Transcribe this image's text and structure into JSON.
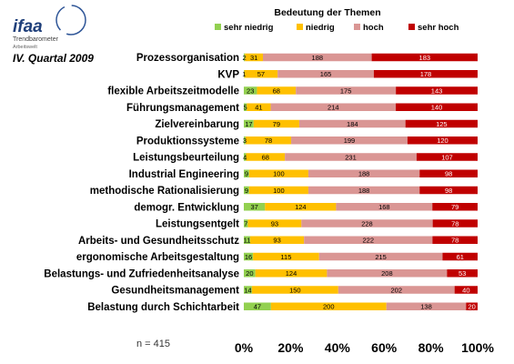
{
  "logo": {
    "word": "ifaa",
    "line1": "Trendbarometer",
    "line2": "Arbeitswelt"
  },
  "period": "IV. Quartal 2009",
  "sample": "n = 415",
  "colors": {
    "sehr_niedrig": "#92d050",
    "niedrig": "#ffc000",
    "hoch": "#da9694",
    "sehr_hoch": "#c00000"
  },
  "chart_data": {
    "type": "bar",
    "orientation": "horizontal",
    "stacked": "percent",
    "title": "Bedeutung der Themen",
    "legend_position": "top",
    "xlim": [
      0,
      100
    ],
    "x_ticks": [
      "0%",
      "20%",
      "40%",
      "60%",
      "80%",
      "100%"
    ],
    "categories": [
      "Prozessorganisation",
      "KVP",
      "flexible Arbeitszeitmodelle",
      "Führungsmanagement",
      "Zielvereinbarung",
      "Produktionssysteme",
      "Leistungsbeurteilung",
      "Industrial Engineering",
      "methodische Rationalisierung",
      "demogr. Entwicklung",
      "Leistungsentgelt",
      "Arbeits- und Gesundheitsschutz",
      "ergonomische Arbeitsgestaltung",
      "Belastungs- und Zufriedenheitsanalyse",
      "Gesundheitsmanagement",
      "Belastung durch Schichtarbeit"
    ],
    "series": [
      {
        "name": "sehr niedrig",
        "values": [
          2,
          1,
          23,
          5,
          17,
          3,
          4,
          9,
          9,
          37,
          7,
          11,
          16,
          20,
          14,
          47
        ]
      },
      {
        "name": "niedrig",
        "values": [
          31,
          57,
          68,
          41,
          79,
          78,
          68,
          100,
          100,
          124,
          93,
          93,
          115,
          124,
          150,
          200
        ]
      },
      {
        "name": "hoch",
        "values": [
          188,
          165,
          175,
          214,
          184,
          199,
          231,
          188,
          188,
          168,
          228,
          222,
          215,
          208,
          202,
          138
        ]
      },
      {
        "name": "sehr hoch",
        "values": [
          183,
          178,
          143,
          140,
          125,
          120,
          107,
          98,
          98,
          79,
          78,
          78,
          61,
          53,
          40,
          20
        ]
      }
    ]
  }
}
